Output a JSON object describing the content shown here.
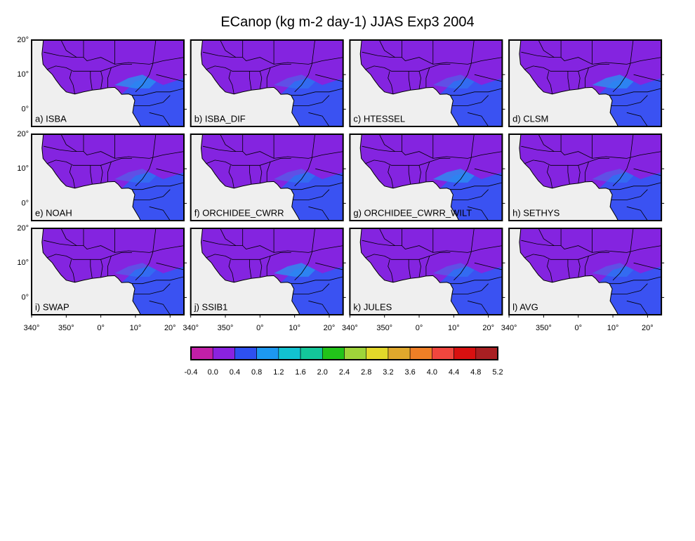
{
  "title": "ECanop (kg m-2 day-1) JJAS Exp3 2004",
  "panels": [
    "a) ISBA",
    "b) ISBA_DIF",
    "c) HTESSEL",
    "d) CLSM",
    "e) NOAH",
    "f) ORCHIDEE_CWRR",
    "g) ORCHIDEE_CWRR_WILT",
    "h) SETHYS",
    "i) SWAP",
    "j) SSIB1",
    "k) JULES",
    "l) AVG"
  ],
  "lat_labels": [
    "20°",
    "10°",
    "0°"
  ],
  "lon_labels": [
    "340°",
    "350°",
    "0°",
    "10°",
    "20°"
  ],
  "colorbar": {
    "labels": [
      "-0.4",
      "0.0",
      "0.4",
      "0.8",
      "1.2",
      "1.6",
      "2.0",
      "2.4",
      "2.8",
      "3.2",
      "3.6",
      "4.0",
      "4.4",
      "4.8",
      "5.2"
    ],
    "colors": [
      "#c21fa8",
      "#8a22e0",
      "#2e50f0",
      "#1d98f0",
      "#12c2d0",
      "#13c79a",
      "#22c41a",
      "#9ed43a",
      "#e3d82a",
      "#e0a82c",
      "#ef7f26",
      "#f0463e",
      "#d81010",
      "#a81f22"
    ]
  }
}
